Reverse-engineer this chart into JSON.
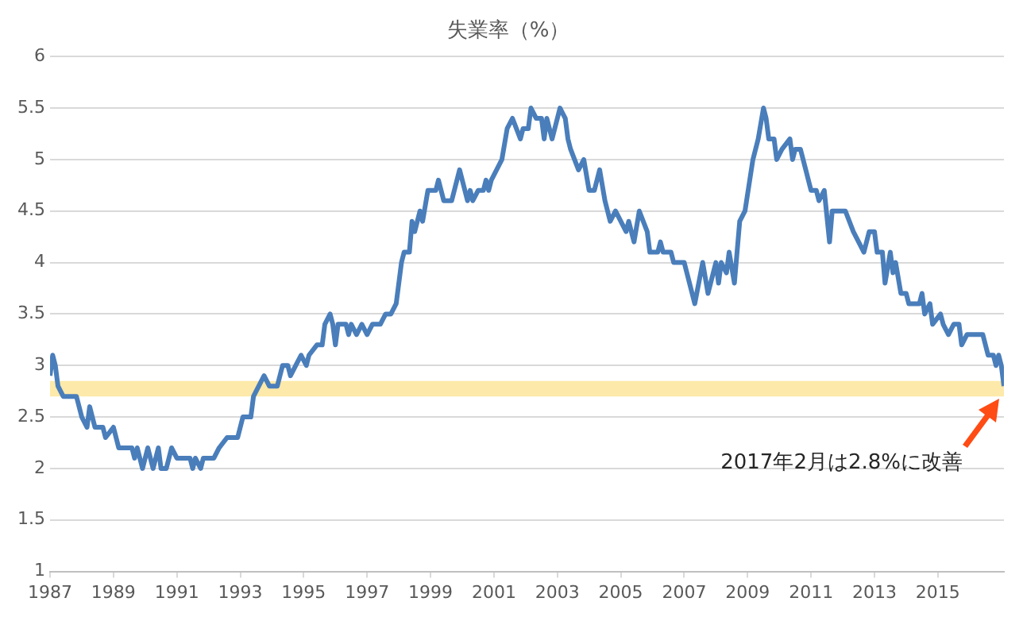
{
  "chart_data": {
    "type": "line",
    "title": "失業率（%）",
    "x": [
      "1987-01",
      "1987-02",
      "1987-03",
      "1987-04",
      "1987-06",
      "1987-11",
      "1988-01",
      "1988-03",
      "1988-04",
      "1988-06",
      "1988-09",
      "1988-10",
      "1989-01",
      "1989-03",
      "1989-08",
      "1989-09",
      "1989-10",
      "1989-12",
      "1990-02",
      "1990-04",
      "1990-06",
      "1990-07",
      "1990-09",
      "1990-11",
      "1991-01",
      "1991-06",
      "1991-07",
      "1991-08",
      "1991-10",
      "1991-11",
      "1992-03",
      "1992-05",
      "1992-08",
      "1992-12",
      "1993-02",
      "1993-05",
      "1993-06",
      "1993-08",
      "1993-10",
      "1993-12",
      "1994-03",
      "1994-05",
      "1994-07",
      "1994-08",
      "1994-10",
      "1994-12",
      "1995-02",
      "1995-03",
      "1995-06",
      "1995-08",
      "1995-09",
      "1995-11",
      "1995-12",
      "1996-01",
      "1996-02",
      "1996-05",
      "1996-06",
      "1996-07",
      "1996-09",
      "1996-11",
      "1997-01",
      "1997-03",
      "1997-06",
      "1997-08",
      "1997-10",
      "1997-12",
      "1998-02",
      "1998-03",
      "1998-05",
      "1998-06",
      "1998-07",
      "1998-09",
      "1998-10",
      "1998-12",
      "1999-03",
      "1999-04",
      "1999-06",
      "1999-09",
      "1999-10",
      "1999-12",
      "2000-03",
      "2000-04",
      "2000-05",
      "2000-07",
      "2000-09",
      "2000-10",
      "2000-11",
      "2000-12",
      "2001-02",
      "2001-04",
      "2001-06",
      "2001-08",
      "2001-11",
      "2001-12",
      "2002-02",
      "2002-03",
      "2002-05",
      "2002-07",
      "2002-08",
      "2002-09",
      "2002-11",
      "2003-02",
      "2003-04",
      "2003-05",
      "2003-06",
      "2003-09",
      "2003-11",
      "2004-01",
      "2004-03",
      "2004-05",
      "2004-07",
      "2004-09",
      "2004-11",
      "2005-01",
      "2005-03",
      "2005-04",
      "2005-06",
      "2005-08",
      "2005-11",
      "2005-12",
      "2006-03",
      "2006-04",
      "2006-05",
      "2006-08",
      "2006-09",
      "2007-01",
      "2007-03",
      "2007-05",
      "2007-08",
      "2007-10",
      "2008-01",
      "2008-02",
      "2008-03",
      "2008-05",
      "2008-06",
      "2008-08",
      "2008-10",
      "2008-12",
      "2009-03",
      "2009-05",
      "2009-07",
      "2009-08",
      "2009-09",
      "2009-11",
      "2009-12",
      "2010-02",
      "2010-05",
      "2010-06",
      "2010-07",
      "2010-09",
      "2010-11",
      "2011-01",
      "2011-03",
      "2011-04",
      "2011-06",
      "2011-08",
      "2011-09",
      "2011-12",
      "2012-02",
      "2012-05",
      "2012-07",
      "2012-09",
      "2012-11",
      "2013-01",
      "2013-02",
      "2013-04",
      "2013-05",
      "2013-07",
      "2013-08",
      "2013-09",
      "2013-11",
      "2014-01",
      "2014-02",
      "2014-06",
      "2014-07",
      "2014-08",
      "2014-10",
      "2014-11",
      "2015-02",
      "2015-03",
      "2015-05",
      "2015-07",
      "2015-09",
      "2015-10",
      "2015-12",
      "2016-02",
      "2016-06",
      "2016-08",
      "2016-10",
      "2016-11",
      "2016-12",
      "2017-01",
      "2017-02"
    ],
    "series": [
      {
        "color": "#4a7ebb",
        "values": [
          2.9,
          3.1,
          3.0,
          2.8,
          2.7,
          2.7,
          2.5,
          2.4,
          2.6,
          2.4,
          2.4,
          2.3,
          2.4,
          2.2,
          2.2,
          2.1,
          2.2,
          2.0,
          2.2,
          2.0,
          2.2,
          2.0,
          2.0,
          2.2,
          2.1,
          2.1,
          2.0,
          2.1,
          2.0,
          2.1,
          2.1,
          2.2,
          2.3,
          2.3,
          2.5,
          2.5,
          2.7,
          2.8,
          2.9,
          2.8,
          2.8,
          3.0,
          3.0,
          2.9,
          3.0,
          3.1,
          3.0,
          3.1,
          3.2,
          3.2,
          3.4,
          3.5,
          3.4,
          3.2,
          3.4,
          3.4,
          3.3,
          3.4,
          3.3,
          3.4,
          3.3,
          3.4,
          3.4,
          3.5,
          3.5,
          3.6,
          4.0,
          4.1,
          4.1,
          4.4,
          4.3,
          4.5,
          4.4,
          4.7,
          4.7,
          4.8,
          4.6,
          4.6,
          4.7,
          4.9,
          4.6,
          4.7,
          4.6,
          4.7,
          4.7,
          4.8,
          4.7,
          4.8,
          4.9,
          5.0,
          5.3,
          5.4,
          5.2,
          5.3,
          5.3,
          5.5,
          5.4,
          5.4,
          5.2,
          5.4,
          5.2,
          5.5,
          5.4,
          5.2,
          5.1,
          4.9,
          5.0,
          4.7,
          4.7,
          4.9,
          4.6,
          4.4,
          4.5,
          4.4,
          4.3,
          4.4,
          4.2,
          4.5,
          4.3,
          4.1,
          4.1,
          4.2,
          4.1,
          4.1,
          4.0,
          4.0,
          3.8,
          3.6,
          4.0,
          3.7,
          4.0,
          3.8,
          4.0,
          3.9,
          4.1,
          3.8,
          4.4,
          4.5,
          5.0,
          5.2,
          5.5,
          5.4,
          5.2,
          5.2,
          5.0,
          5.1,
          5.2,
          5.0,
          5.1,
          5.1,
          4.9,
          4.7,
          4.7,
          4.6,
          4.7,
          4.2,
          4.5,
          4.5,
          4.5,
          4.3,
          4.2,
          4.1,
          4.3,
          4.3,
          4.1,
          4.1,
          3.8,
          4.1,
          3.9,
          4.0,
          3.7,
          3.7,
          3.6,
          3.6,
          3.7,
          3.5,
          3.6,
          3.4,
          3.5,
          3.4,
          3.3,
          3.4,
          3.4,
          3.2,
          3.3,
          3.3,
          3.3,
          3.1,
          3.1,
          3.0,
          3.1,
          3.0,
          2.8
        ]
      }
    ],
    "xlim": [
      "1987-01",
      "2017-02"
    ],
    "xticks": [
      {
        "value": "1987-01",
        "label": "1987"
      },
      {
        "value": "1989-01",
        "label": "1989"
      },
      {
        "value": "1991-01",
        "label": "1991"
      },
      {
        "value": "1993-01",
        "label": "1993"
      },
      {
        "value": "1995-01",
        "label": "1995"
      },
      {
        "value": "1997-01",
        "label": "1997"
      },
      {
        "value": "1999-01",
        "label": "1999"
      },
      {
        "value": "2001-01",
        "label": "2001"
      },
      {
        "value": "2003-01",
        "label": "2003"
      },
      {
        "value": "2005-01",
        "label": "2005"
      },
      {
        "value": "2007-01",
        "label": "2007"
      },
      {
        "value": "2009-01",
        "label": "2009"
      },
      {
        "value": "2011-01",
        "label": "2011"
      },
      {
        "value": "2013-01",
        "label": "2013"
      },
      {
        "value": "2015-01",
        "label": "2015"
      }
    ],
    "ylim": [
      1,
      6
    ],
    "yticks": [
      1,
      1.5,
      2,
      2.5,
      3,
      3.5,
      4,
      4.5,
      5,
      5.5,
      6
    ],
    "bands": [
      {
        "axis": "y",
        "from": 2.7,
        "to": 2.85,
        "color": "#fde9a9"
      }
    ],
    "annotations": [
      "2017年2月は2.8%に改善"
    ],
    "grid": "y",
    "legend": false,
    "marker": "none",
    "line_style": "solid"
  }
}
